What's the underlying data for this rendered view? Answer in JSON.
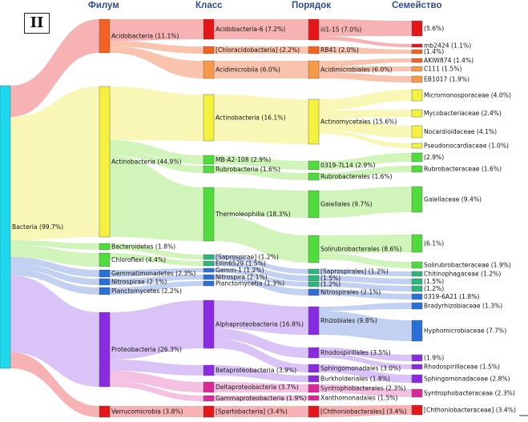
{
  "panel_label": "II",
  "headers": [
    "Филум",
    "Класс",
    "Порядок",
    "Семейство"
  ],
  "colors": {
    "bacteria": "#1ed8ee",
    "acido": "#f26321",
    "acido_flow": "#f9b8a0",
    "acidimicro": "#f69a4a",
    "actino": "#f4f23e",
    "actino_flow": "#f8f6a8",
    "green": "#4fdc3c",
    "green_flow": "#c9f2ae",
    "bluegreen": "#2bb67c",
    "blue": "#2a6fd6",
    "blue_flow": "#b7c8f0",
    "purple": "#8a2be2",
    "purple_flow": "#d4b8f5",
    "magenta": "#d8289a",
    "magenta_flow": "#f2b6dd",
    "red": "#e4161a",
    "red_flow": "#f6a6a6"
  },
  "nodes": {
    "bacteria": "Bacteria (99.7%)",
    "p_acido": "Acidobacteria (11.1%)",
    "p_actino": "Actinobacteria (44.9%)",
    "p_bactero": "Bacteroidetes (1.8%)",
    "p_chloro": "Chloroflexi (4.4%)",
    "p_gemma": "Gemmatimonadetes (2.3%)",
    "p_nitro": "Nitrospirae (2.1%)",
    "p_plancto": "Planctomycetes (2.2%)",
    "p_proteo": "Proteobacteria (26.3%)",
    "p_verru": "Verrucomicrobia (3.8%)",
    "c_acido6": "Acidobacteria-6 (7.2%)",
    "c_chlorac": "[Chloracidobacteria] (2.2%)",
    "c_acidim": "Acidimicrobiia (6.0%)",
    "c_actino": "Actinobacteria (16.1%)",
    "c_mba2": "MB-A2-108 (2.9%)",
    "c_rubro": "Rubrobacteria (1.6%)",
    "c_thermo": "Thermoleophilia (18.3%)",
    "c_sapro": "[Saprospirae] (1.2%)",
    "c_ellin": "Ellin6529 (1.5%)",
    "c_gemm1": "Gemm-1 (1.2%)",
    "c_nitro": "Nitrospira (2.1%)",
    "c_plancto": "Planctomycetia (1.3%)",
    "c_alpha": "Alphaproteobacteria (16.8%)",
    "c_beta": "Betaproteobacteria (3.9%)",
    "c_delta": "Deltaproteobacteria (3.7%)",
    "c_gamma": "Gammaproteobacteria (1.9%)",
    "c_sparto": "[Spartobacteria] (3.4%)",
    "o_iii115": "iii1-15 (7.0%)",
    "o_rb41": "RB41 (2.0%)",
    "o_acidim": "Acidimicrobiales (6.0%)",
    "o_actino": "Actinomycetales (15.6%)",
    "o_0319": "0319-7L14 (2.9%)",
    "o_rubro": "Rubrobacterales (1.6%)",
    "o_gaiel": "Gaiellales (9.7%)",
    "o_solir": "Solirubrobacterales (8.6%)",
    "o_sapro": "[Saprospirales] (1.2%)",
    "o_u15": "(1.5%)",
    "o_u12": "(1.2%)",
    "o_nitro": "Nitrospirales (2.1%)",
    "o_rhizo": "Rhizobiales (9.8%)",
    "o_rhodo": "Rhodospirillales (3.5%)",
    "o_sphingo": "Sphingomonadales (3.0%)",
    "o_burk": "Burkholderiales (1.8%)",
    "o_syntro": "Syntrophobacterales (2.3%)",
    "o_xantho": "Xanthomonadales (1.5%)",
    "o_chthon": "[Chthoniobacterales] (3.4%)",
    "f_56": "(5.6%)",
    "f_mb2424": "mb2424 (1.1%)",
    "f_14": "(1.4%)",
    "f_akiw": "AKIW874 (1.4%)",
    "f_c111": "C111 (1.5%)",
    "f_eb": "EB1017 (1.9%)",
    "f_micromono": "Micromonosporaceae (4.0%)",
    "f_myco": "Mycobacteriaceae (2.4%)",
    "f_nocard": "Nocardioidaceae (4.1%)",
    "f_pseudo": "Pseudonocardiaceae (1.0%)",
    "f_29": "(2.9%)",
    "f_rubro": "Rubrobacteraceae (1.6%)",
    "f_gaiel": "Gaiellaceae (9.4%)",
    "f_61": "(6.1%)",
    "f_solir": "Solirubrobacteraceae (1.9%)",
    "f_chitino": "Chitinophagaceae (1.2%)",
    "f_15": "(1.5%)",
    "f_12": "(1.2%)",
    "f_0319": "0319-6A21 (1.8%)",
    "f_brady": "Bradyrhizobiaceae (1.3%)",
    "f_hypho": "Hyphomicrobiaceae (7.7%)",
    "f_19": "(1.9%)",
    "f_rhodospir": "Rhodospirillaceae (1.5%)",
    "f_sphingo": "Sphingomonadaceae (2.8%)",
    "f_syntro": "Syntrophobacteraceae (2.3%)",
    "f_chthon": "[Chthoniobacteraceae] (3.4%)"
  }
}
